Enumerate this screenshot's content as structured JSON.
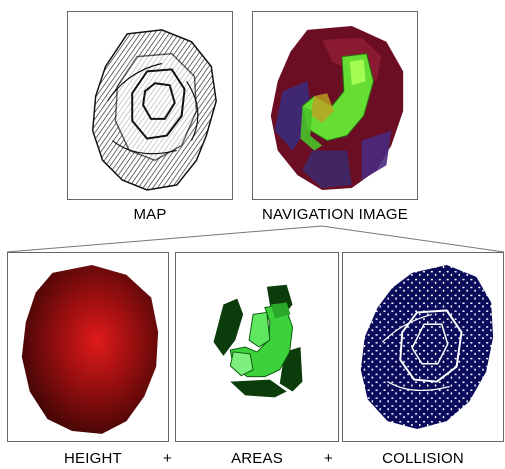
{
  "captions": {
    "map": "MAP",
    "navigation": "NAVIGATION IMAGE",
    "height": "HEIGHT",
    "areas": "AREAS",
    "collision": "COLLISION"
  },
  "operators": {
    "plus_1": "+",
    "plus_2": "+"
  },
  "colors": {
    "frame_border": "#666666",
    "height_red": "#8b0000",
    "areas_light_green": "#3cd23c",
    "areas_dark_green": "#0c3c0c",
    "collision_navy": "#0b0b5c",
    "map_linework": "#111111"
  }
}
